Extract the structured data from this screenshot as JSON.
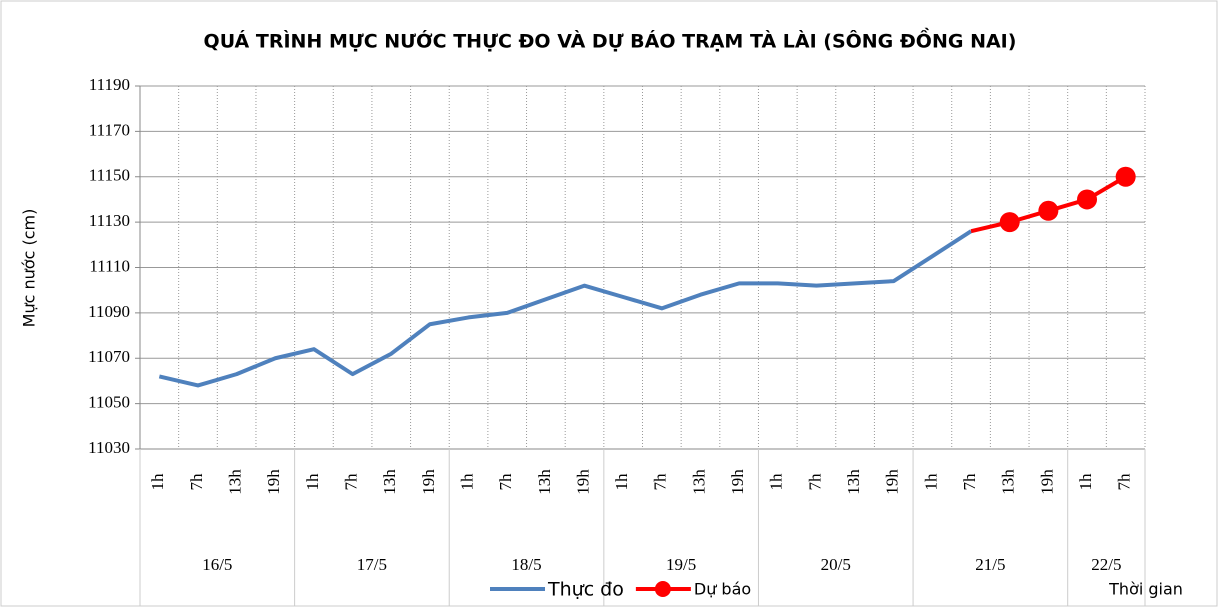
{
  "chart_data": {
    "type": "line",
    "title": "QUÁ TRÌNH MỰC NƯỚC THỰC ĐO VÀ DỰ BÁO TRẠM TÀ LÀI (SÔNG ĐỒNG NAI)",
    "y_label": "Mực nước (cm)",
    "x_label": "Thời gian",
    "category_groups": [
      {
        "label": "16/5",
        "categories": [
          "1h",
          "7h",
          "13h",
          "19h"
        ]
      },
      {
        "label": "17/5",
        "categories": [
          "1h",
          "7h",
          "13h",
          "19h"
        ]
      },
      {
        "label": "18/5",
        "categories": [
          "1h",
          "7h",
          "13h",
          "19h"
        ]
      },
      {
        "label": "19/5",
        "categories": [
          "1h",
          "7h",
          "13h",
          "19h"
        ]
      },
      {
        "label": "20/5",
        "categories": [
          "1h",
          "7h",
          "13h",
          "19h"
        ]
      },
      {
        "label": "21/5",
        "categories": [
          "1h",
          "7h",
          "13h",
          "19h"
        ]
      },
      {
        "label": "22/5",
        "categories": [
          "1h",
          "7h"
        ]
      }
    ],
    "series": [
      {
        "name": "Thực đo",
        "color": "#4f81bd",
        "marker": false,
        "values": [
          11062,
          11058,
          11063,
          11070,
          11074,
          11063,
          11072,
          11085,
          11088,
          11090,
          11096,
          11102,
          11097,
          11092,
          11098,
          11103,
          11103,
          11102,
          11103,
          11104,
          11115,
          11126,
          null,
          null,
          null,
          null
        ]
      },
      {
        "name": "Dự báo",
        "color": "#ff0000",
        "marker": true,
        "values": [
          null,
          null,
          null,
          null,
          null,
          null,
          null,
          null,
          null,
          null,
          null,
          null,
          null,
          null,
          null,
          null,
          null,
          null,
          null,
          null,
          null,
          11126,
          11130,
          11135,
          11140,
          11150
        ]
      }
    ],
    "ylim": [
      11030,
      11190
    ],
    "yticks": [
      11030,
      11050,
      11070,
      11090,
      11110,
      11130,
      11150,
      11170,
      11190
    ],
    "grid": true,
    "legend": "bottom"
  }
}
